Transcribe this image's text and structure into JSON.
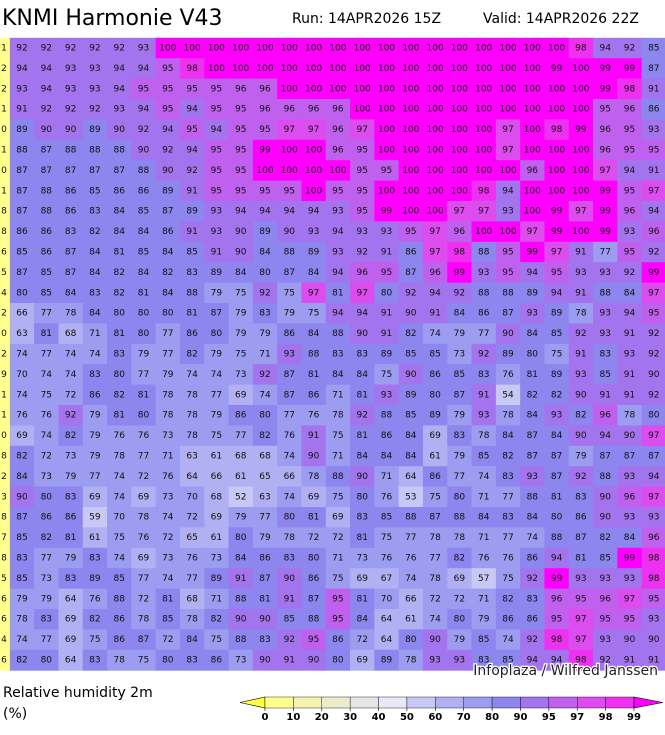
{
  "header": {
    "title": "KNMI Harmonie V43",
    "run": "Run: 14APR2026 15Z",
    "valid": "Valid: 14APR2026 22Z"
  },
  "grid": {
    "rows": [
      [
        1,
        92,
        92,
        92,
        92,
        92,
        93,
        100,
        100,
        100,
        100,
        100,
        100,
        100,
        100,
        100,
        100,
        100,
        100,
        100,
        100,
        100,
        100,
        100,
        98,
        94,
        92,
        85
      ],
      [
        2,
        94,
        94,
        93,
        93,
        94,
        94,
        95,
        98,
        100,
        100,
        100,
        100,
        100,
        100,
        100,
        100,
        100,
        100,
        100,
        100,
        100,
        100,
        99,
        100,
        99,
        99,
        87
      ],
      [
        2,
        93,
        94,
        93,
        93,
        94,
        95,
        95,
        95,
        95,
        96,
        96,
        100,
        100,
        100,
        100,
        100,
        100,
        100,
        100,
        100,
        100,
        100,
        100,
        100,
        99,
        98,
        91
      ],
      [
        1,
        91,
        92,
        92,
        92,
        93,
        94,
        95,
        94,
        95,
        95,
        96,
        96,
        96,
        96,
        100,
        100,
        100,
        100,
        100,
        100,
        100,
        100,
        100,
        100,
        95,
        96,
        86
      ],
      [
        0,
        89,
        90,
        90,
        89,
        90,
        92,
        94,
        95,
        94,
        95,
        95,
        97,
        97,
        96,
        97,
        100,
        100,
        100,
        100,
        100,
        97,
        100,
        98,
        99,
        96,
        95,
        93
      ],
      [
        1,
        88,
        87,
        88,
        88,
        88,
        90,
        92,
        94,
        95,
        95,
        99,
        100,
        100,
        96,
        95,
        100,
        100,
        100,
        100,
        100,
        97,
        100,
        100,
        100,
        96,
        95,
        95
      ],
      [
        0,
        87,
        87,
        87,
        87,
        87,
        88,
        90,
        92,
        95,
        95,
        100,
        100,
        100,
        100,
        95,
        95,
        100,
        100,
        100,
        100,
        100,
        96,
        100,
        100,
        97,
        94,
        91
      ],
      [
        1,
        87,
        88,
        86,
        85,
        86,
        86,
        89,
        91,
        95,
        95,
        95,
        95,
        100,
        95,
        95,
        100,
        100,
        100,
        100,
        98,
        94,
        100,
        100,
        100,
        99,
        95,
        97
      ],
      [
        8,
        87,
        88,
        86,
        83,
        84,
        85,
        87,
        89,
        93,
        94,
        94,
        94,
        94,
        93,
        95,
        99,
        100,
        100,
        97,
        97,
        93,
        100,
        99,
        97,
        99,
        96,
        94
      ],
      [
        8,
        86,
        86,
        83,
        82,
        84,
        84,
        86,
        91,
        93,
        90,
        89,
        90,
        93,
        94,
        93,
        93,
        95,
        97,
        96,
        100,
        100,
        97,
        99,
        100,
        99,
        93,
        96
      ],
      [
        6,
        85,
        86,
        87,
        84,
        81,
        85,
        84,
        85,
        91,
        90,
        84,
        88,
        89,
        93,
        92,
        91,
        86,
        97,
        98,
        88,
        95,
        99,
        97,
        91,
        77,
        95,
        92
      ],
      [
        5,
        87,
        85,
        87,
        84,
        82,
        84,
        82,
        83,
        89,
        84,
        80,
        87,
        84,
        94,
        96,
        95,
        87,
        96,
        99,
        93,
        95,
        94,
        95,
        93,
        93,
        92,
        99
      ],
      [
        4,
        80,
        85,
        84,
        83,
        82,
        81,
        84,
        88,
        79,
        75,
        92,
        75,
        97,
        81,
        97,
        80,
        92,
        94,
        92,
        88,
        88,
        89,
        94,
        91,
        88,
        84,
        97
      ],
      [
        2,
        66,
        77,
        78,
        84,
        80,
        80,
        80,
        81,
        87,
        79,
        83,
        79,
        75,
        94,
        94,
        91,
        90,
        91,
        84,
        86,
        87,
        93,
        89,
        78,
        93,
        94,
        95
      ],
      [
        0,
        63,
        81,
        68,
        71,
        81,
        80,
        77,
        86,
        80,
        79,
        79,
        86,
        84,
        88,
        90,
        91,
        82,
        74,
        79,
        77,
        90,
        84,
        85,
        92,
        93,
        91,
        92
      ],
      [
        2,
        74,
        77,
        74,
        74,
        83,
        79,
        77,
        82,
        79,
        75,
        71,
        93,
        88,
        83,
        83,
        89,
        85,
        85,
        73,
        92,
        89,
        80,
        75,
        91,
        83,
        93,
        92
      ],
      [
        9,
        70,
        74,
        74,
        83,
        80,
        77,
        79,
        74,
        74,
        73,
        92,
        87,
        81,
        84,
        84,
        75,
        90,
        86,
        85,
        83,
        76,
        81,
        89,
        93,
        85,
        91,
        90
      ],
      [
        1,
        74,
        75,
        72,
        86,
        82,
        81,
        78,
        78,
        77,
        69,
        74,
        87,
        86,
        71,
        81,
        93,
        89,
        80,
        87,
        91,
        54,
        82,
        82,
        90,
        91,
        91,
        92
      ],
      [
        1,
        76,
        76,
        92,
        79,
        81,
        80,
        78,
        78,
        79,
        86,
        80,
        77,
        76,
        78,
        92,
        88,
        85,
        89,
        79,
        93,
        78,
        84,
        93,
        82,
        96,
        78,
        80
      ],
      [
        0,
        69,
        74,
        82,
        79,
        76,
        76,
        73,
        78,
        75,
        77,
        82,
        76,
        91,
        75,
        81,
        86,
        84,
        69,
        83,
        78,
        84,
        87,
        84,
        90,
        94,
        90,
        97
      ],
      [
        8,
        82,
        72,
        73,
        79,
        78,
        77,
        71,
        63,
        61,
        68,
        68,
        74,
        90,
        71,
        84,
        84,
        84,
        61,
        79,
        85,
        82,
        87,
        87,
        79,
        87,
        87,
        87
      ],
      [
        2,
        84,
        73,
        79,
        77,
        74,
        72,
        76,
        64,
        66,
        61,
        65,
        66,
        78,
        88,
        90,
        71,
        64,
        86,
        77,
        74,
        83,
        93,
        87,
        92,
        88,
        93,
        94
      ],
      [
        3,
        90,
        80,
        83,
        69,
        74,
        69,
        73,
        70,
        68,
        52,
        63,
        74,
        69,
        75,
        80,
        76,
        53,
        75,
        80,
        71,
        77,
        88,
        81,
        83,
        90,
        96,
        97
      ],
      [
        8,
        87,
        86,
        86,
        59,
        70,
        78,
        74,
        72,
        69,
        79,
        77,
        80,
        81,
        69,
        83,
        85,
        88,
        87,
        88,
        84,
        83,
        84,
        80,
        86,
        90,
        93,
        93
      ],
      [
        7,
        85,
        82,
        81,
        61,
        75,
        76,
        72,
        65,
        61,
        80,
        79,
        78,
        72,
        72,
        81,
        75,
        77,
        78,
        78,
        71,
        77,
        74,
        88,
        87,
        82,
        84,
        96
      ],
      [
        8,
        83,
        77,
        79,
        83,
        74,
        69,
        73,
        76,
        73,
        84,
        86,
        83,
        80,
        71,
        73,
        76,
        76,
        77,
        82,
        76,
        76,
        86,
        94,
        81,
        85,
        99,
        98
      ],
      [
        5,
        85,
        73,
        83,
        89,
        85,
        77,
        74,
        77,
        89,
        91,
        87,
        90,
        86,
        75,
        69,
        67,
        74,
        78,
        69,
        57,
        75,
        92,
        99,
        93,
        93,
        93,
        98
      ],
      [
        6,
        79,
        79,
        64,
        76,
        88,
        72,
        81,
        68,
        71,
        88,
        81,
        91,
        87,
        95,
        81,
        70,
        66,
        72,
        72,
        71,
        82,
        83,
        96,
        95,
        96,
        97,
        95
      ],
      [
        6,
        78,
        83,
        69,
        82,
        86,
        78,
        85,
        78,
        82,
        90,
        90,
        85,
        88,
        95,
        84,
        64,
        61,
        74,
        80,
        79,
        86,
        86,
        95,
        97,
        95,
        95,
        93
      ],
      [
        4,
        74,
        77,
        69,
        75,
        86,
        87,
        72,
        84,
        75,
        88,
        83,
        92,
        95,
        86,
        72,
        64,
        80,
        90,
        79,
        85,
        74,
        92,
        98,
        97,
        93,
        90,
        90
      ],
      [
        6,
        82,
        80,
        64,
        83,
        78,
        75,
        80,
        83,
        86,
        73,
        90,
        91,
        90,
        80,
        69,
        89,
        78,
        93,
        93,
        83,
        85,
        94,
        94,
        98,
        92,
        91,
        91
      ]
    ]
  },
  "legend": {
    "label": "Relative humidity 2m",
    "unit": "(%)",
    "ticks": [
      0,
      10,
      20,
      30,
      40,
      50,
      60,
      70,
      80,
      90,
      95,
      97,
      98,
      99
    ],
    "colors": [
      "#ffff40",
      "#ffff90",
      "#f4f4b0",
      "#ececcc",
      "#e6e6e6",
      "#e8e8f6",
      "#c8c8f4",
      "#b0b0f2",
      "#9c9cf0",
      "#8c86ee",
      "#a474ee",
      "#c060ee",
      "#dc4cee",
      "#ee30f0",
      "#ff00ff"
    ]
  },
  "credit": "Infoplaza / Wilfred Janssen"
}
